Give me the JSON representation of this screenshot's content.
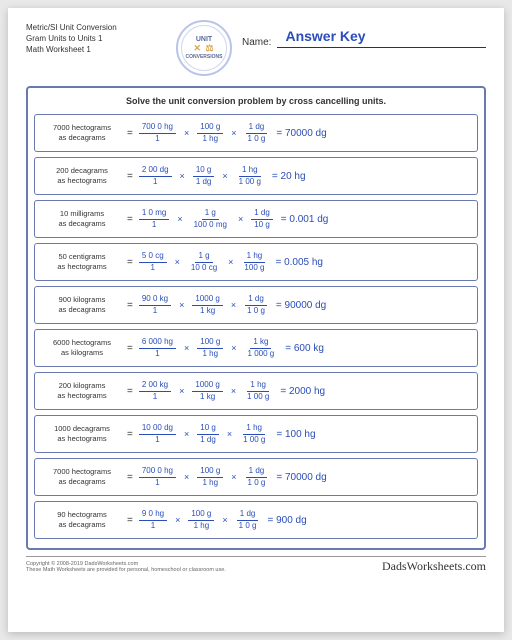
{
  "header": {
    "line1": "Metric/SI Unit Conversion",
    "line2": "Gram Units to Units 1",
    "line3": "Math Worksheet 1",
    "logo_top": "UNIT",
    "logo_bottom": "CONVERSIONS",
    "name_label": "Name:",
    "answer_key": "Answer Key"
  },
  "instruction": "Solve the unit conversion problem by cross cancelling units.",
  "problems": [
    {
      "prompt_l1": "7000 hectograms",
      "prompt_l2": "as decagrams",
      "fracs": [
        {
          "num": "700 0 hg",
          "den": "1"
        },
        {
          "num": "100 g",
          "den": "1 hg"
        },
        {
          "num": "1 dg",
          "den": "1 0 g"
        }
      ],
      "result": "= 70000 dg"
    },
    {
      "prompt_l1": "200 decagrams",
      "prompt_l2": "as hectograms",
      "fracs": [
        {
          "num": "2 00 dg",
          "den": "1"
        },
        {
          "num": "10 g",
          "den": "1 dg"
        },
        {
          "num": "1 hg",
          "den": "1 00 g"
        }
      ],
      "result": "= 20 hg"
    },
    {
      "prompt_l1": "10 milligrams",
      "prompt_l2": "as decagrams",
      "fracs": [
        {
          "num": "1 0 mg",
          "den": "1"
        },
        {
          "num": "1 g",
          "den": "100 0 mg"
        },
        {
          "num": "1 dg",
          "den": "10 g"
        }
      ],
      "result": "= 0.001 dg"
    },
    {
      "prompt_l1": "50 centigrams",
      "prompt_l2": "as hectograms",
      "fracs": [
        {
          "num": "5 0 cg",
          "den": "1"
        },
        {
          "num": "1 g",
          "den": "10 0 cg"
        },
        {
          "num": "1 hg",
          "den": "100 g"
        }
      ],
      "result": "= 0.005 hg"
    },
    {
      "prompt_l1": "900 kilograms",
      "prompt_l2": "as decagrams",
      "fracs": [
        {
          "num": "90 0 kg",
          "den": "1"
        },
        {
          "num": "1000 g",
          "den": "1 kg"
        },
        {
          "num": "1 dg",
          "den": "1 0 g"
        }
      ],
      "result": "= 90000 dg"
    },
    {
      "prompt_l1": "6000 hectograms",
      "prompt_l2": "as kilograms",
      "fracs": [
        {
          "num": "6 000 hg",
          "den": "1"
        },
        {
          "num": "100 g",
          "den": "1 hg"
        },
        {
          "num": "1 kg",
          "den": "1 000 g"
        }
      ],
      "result": "= 600 kg"
    },
    {
      "prompt_l1": "200 kilograms",
      "prompt_l2": "as hectograms",
      "fracs": [
        {
          "num": "2 00 kg",
          "den": "1"
        },
        {
          "num": "1000 g",
          "den": "1 kg"
        },
        {
          "num": "1 hg",
          "den": "1 00 g"
        }
      ],
      "result": "= 2000 hg"
    },
    {
      "prompt_l1": "1000 decagrams",
      "prompt_l2": "as hectograms",
      "fracs": [
        {
          "num": "10 00 dg",
          "den": "1"
        },
        {
          "num": "10 g",
          "den": "1 dg"
        },
        {
          "num": "1 hg",
          "den": "1 00 g"
        }
      ],
      "result": "= 100 hg"
    },
    {
      "prompt_l1": "7000 hectograms",
      "prompt_l2": "as decagrams",
      "fracs": [
        {
          "num": "700 0 hg",
          "den": "1"
        },
        {
          "num": "100 g",
          "den": "1 hg"
        },
        {
          "num": "1 dg",
          "den": "1 0 g"
        }
      ],
      "result": "= 70000 dg"
    },
    {
      "prompt_l1": "90 hectograms",
      "prompt_l2": "as decagrams",
      "fracs": [
        {
          "num": "9 0 hg",
          "den": "1"
        },
        {
          "num": "100 g",
          "den": "1 hg"
        },
        {
          "num": "1 dg",
          "den": "1 0 g"
        }
      ],
      "result": "= 900 dg"
    }
  ],
  "footer": {
    "copyright": "Copyright © 2008-2019 DadsWorksheets.com",
    "note": "These Math Worksheets are provided for personal, homeschool or classroom use.",
    "brand": "DadsWorksheets.com"
  },
  "colors": {
    "accent": "#2a4db8",
    "border": "#6a7ab0",
    "logo_ring": "#b8c5e8"
  }
}
